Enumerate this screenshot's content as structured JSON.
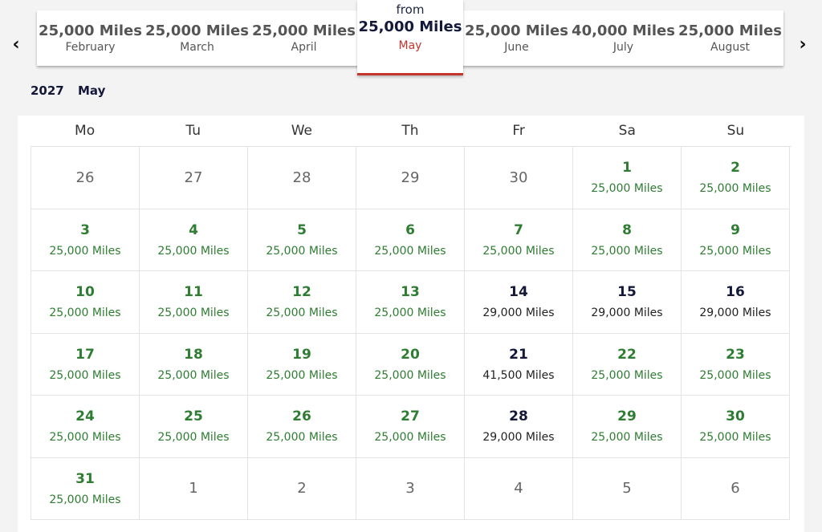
{
  "nav": {
    "prev_icon": "chevron-left-icon",
    "next_icon": "chevron-right-icon",
    "prev": "‹",
    "next": "›"
  },
  "months": [
    {
      "miles": "25,000 Miles",
      "name": "February"
    },
    {
      "miles": "25,000 Miles",
      "name": "March"
    },
    {
      "miles": "25,000 Miles",
      "name": "April"
    },
    {
      "miles": "25,000 Miles",
      "name": "May",
      "from": "from",
      "active": true
    },
    {
      "miles": "25,000 Miles",
      "name": "June"
    },
    {
      "miles": "40,000 Miles",
      "name": "July"
    },
    {
      "miles": "25,000 Miles",
      "name": "August"
    }
  ],
  "heading": {
    "year": "2027",
    "month": "May"
  },
  "weekdays": [
    "Mo",
    "Tu",
    "We",
    "Th",
    "Fr",
    "Sa",
    "Su"
  ],
  "days": [
    {
      "day": "26",
      "price": "",
      "type": "out"
    },
    {
      "day": "27",
      "price": "",
      "type": "out"
    },
    {
      "day": "28",
      "price": "",
      "type": "out"
    },
    {
      "day": "29",
      "price": "",
      "type": "out"
    },
    {
      "day": "30",
      "price": "",
      "type": "out"
    },
    {
      "day": "1",
      "price": "25,000 Miles",
      "type": "green"
    },
    {
      "day": "2",
      "price": "25,000 Miles",
      "type": "green"
    },
    {
      "day": "3",
      "price": "25,000 Miles",
      "type": "green"
    },
    {
      "day": "4",
      "price": "25,000 Miles",
      "type": "green"
    },
    {
      "day": "5",
      "price": "25,000 Miles",
      "type": "green"
    },
    {
      "day": "6",
      "price": "25,000 Miles",
      "type": "green"
    },
    {
      "day": "7",
      "price": "25,000 Miles",
      "type": "green"
    },
    {
      "day": "8",
      "price": "25,000 Miles",
      "type": "green"
    },
    {
      "day": "9",
      "price": "25,000 Miles",
      "type": "green"
    },
    {
      "day": "10",
      "price": "25,000 Miles",
      "type": "green"
    },
    {
      "day": "11",
      "price": "25,000 Miles",
      "type": "green"
    },
    {
      "day": "12",
      "price": "25,000 Miles",
      "type": "green"
    },
    {
      "day": "13",
      "price": "25,000 Miles",
      "type": "green"
    },
    {
      "day": "14",
      "price": "29,000 Miles",
      "type": "navy"
    },
    {
      "day": "15",
      "price": "29,000 Miles",
      "type": "navy"
    },
    {
      "day": "16",
      "price": "29,000 Miles",
      "type": "navy"
    },
    {
      "day": "17",
      "price": "25,000 Miles",
      "type": "green"
    },
    {
      "day": "18",
      "price": "25,000 Miles",
      "type": "green"
    },
    {
      "day": "19",
      "price": "25,000 Miles",
      "type": "green"
    },
    {
      "day": "20",
      "price": "25,000 Miles",
      "type": "green"
    },
    {
      "day": "21",
      "price": "41,500 Miles",
      "type": "navy"
    },
    {
      "day": "22",
      "price": "25,000 Miles",
      "type": "green"
    },
    {
      "day": "23",
      "price": "25,000 Miles",
      "type": "green"
    },
    {
      "day": "24",
      "price": "25,000 Miles",
      "type": "green"
    },
    {
      "day": "25",
      "price": "25,000 Miles",
      "type": "green"
    },
    {
      "day": "26",
      "price": "25,000 Miles",
      "type": "green"
    },
    {
      "day": "27",
      "price": "25,000 Miles",
      "type": "green"
    },
    {
      "day": "28",
      "price": "29,000 Miles",
      "type": "navy"
    },
    {
      "day": "29",
      "price": "25,000 Miles",
      "type": "green"
    },
    {
      "day": "30",
      "price": "25,000 Miles",
      "type": "green"
    },
    {
      "day": "31",
      "price": "25,000 Miles",
      "type": "green"
    },
    {
      "day": "1",
      "price": "",
      "type": "out"
    },
    {
      "day": "2",
      "price": "",
      "type": "out"
    },
    {
      "day": "3",
      "price": "",
      "type": "out"
    },
    {
      "day": "4",
      "price": "",
      "type": "out"
    },
    {
      "day": "5",
      "price": "",
      "type": "out"
    },
    {
      "day": "6",
      "price": "",
      "type": "out"
    }
  ],
  "colors": {
    "green": "#2e7d32",
    "navy": "#14193a",
    "accent_red": "#c4352e"
  }
}
